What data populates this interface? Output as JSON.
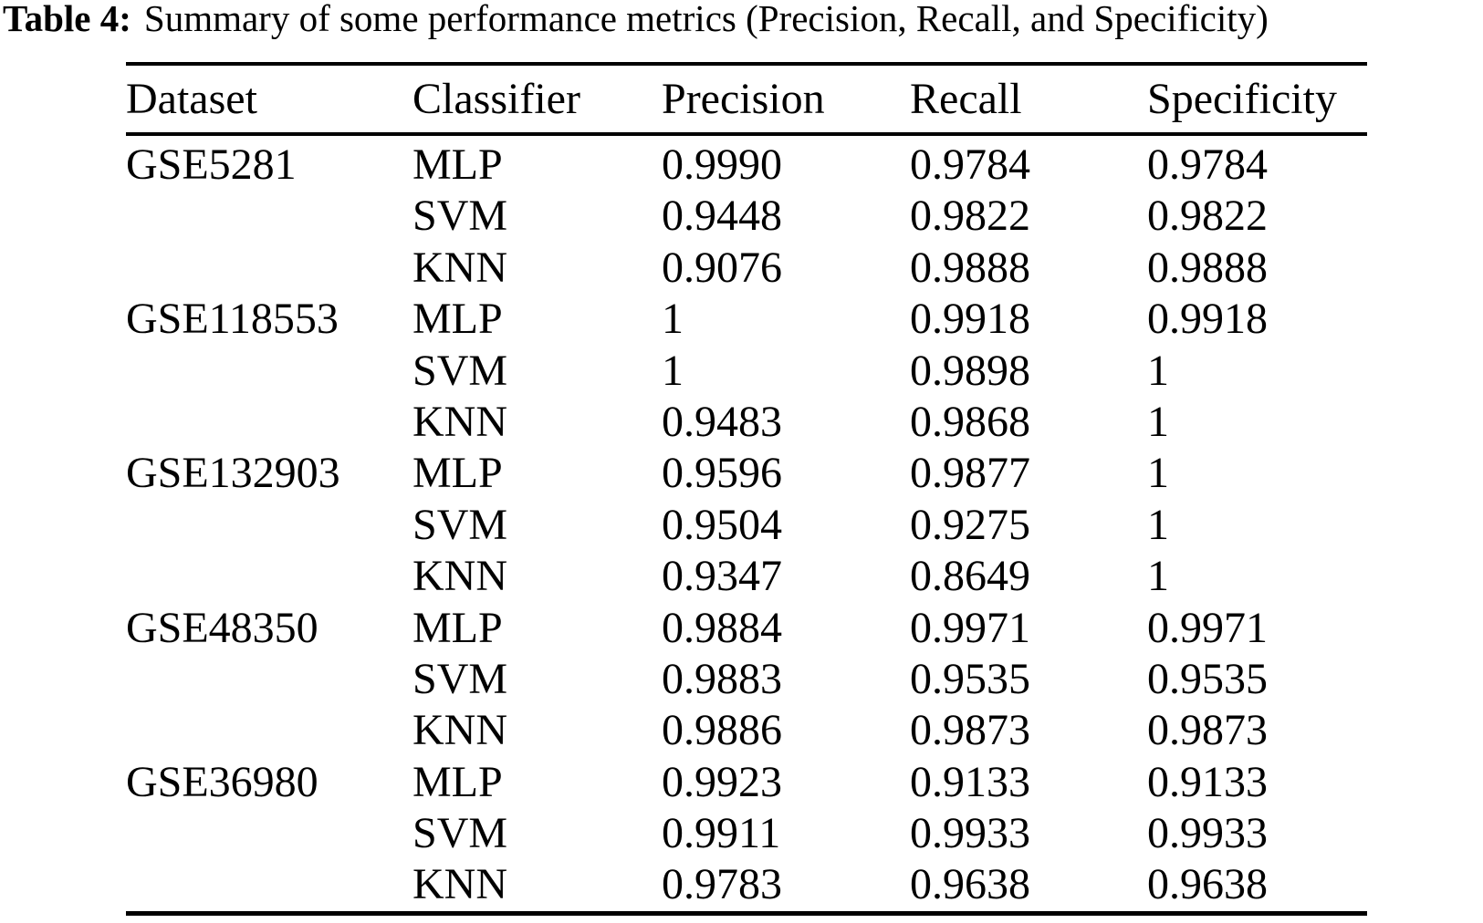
{
  "title": {
    "label": "Table 4:",
    "text": "Summary of some performance metrics (Precision, Recall, and Specificity)"
  },
  "table": {
    "columns": [
      "Dataset",
      "Classifier",
      "Precision",
      "Recall",
      "Specificity"
    ],
    "groups": [
      {
        "dataset": "GSE5281",
        "rows": [
          {
            "classifier": "MLP",
            "precision": "0.9990",
            "recall": "0.9784",
            "specificity": "0.9784"
          },
          {
            "classifier": "SVM",
            "precision": "0.9448",
            "recall": "0.9822",
            "specificity": "0.9822"
          },
          {
            "classifier": "KNN",
            "precision": "0.9076",
            "recall": "0.9888",
            "specificity": "0.9888"
          }
        ]
      },
      {
        "dataset": "GSE118553",
        "rows": [
          {
            "classifier": "MLP",
            "precision": "1",
            "recall": "0.9918",
            "specificity": "0.9918"
          },
          {
            "classifier": "SVM",
            "precision": "1",
            "recall": "0.9898",
            "specificity": "1"
          },
          {
            "classifier": "KNN",
            "precision": "0.9483",
            "recall": "0.9868",
            "specificity": "1"
          }
        ]
      },
      {
        "dataset": "GSE132903",
        "rows": [
          {
            "classifier": "MLP",
            "precision": "0.9596",
            "recall": "0.9877",
            "specificity": "1"
          },
          {
            "classifier": "SVM",
            "precision": "0.9504",
            "recall": "0.9275",
            "specificity": "1"
          },
          {
            "classifier": "KNN",
            "precision": "0.9347",
            "recall": "0.8649",
            "specificity": "1"
          }
        ]
      },
      {
        "dataset": "GSE48350",
        "rows": [
          {
            "classifier": "MLP",
            "precision": "0.9884",
            "recall": "0.9971",
            "specificity": "0.9971"
          },
          {
            "classifier": "SVM",
            "precision": "0.9883",
            "recall": "0.9535",
            "specificity": "0.9535"
          },
          {
            "classifier": "KNN",
            "precision": "0.9886",
            "recall": "0.9873",
            "specificity": "0.9873"
          }
        ]
      },
      {
        "dataset": "GSE36980",
        "rows": [
          {
            "classifier": "MLP",
            "precision": "0.9923",
            "recall": "0.9133",
            "specificity": "0.9133"
          },
          {
            "classifier": "SVM",
            "precision": "0.9911",
            "recall": "0.9933",
            "specificity": "0.9933"
          },
          {
            "classifier": "KNN",
            "precision": "0.9783",
            "recall": "0.9638",
            "specificity": "0.9638"
          }
        ]
      }
    ]
  },
  "colors": {
    "text": "#000000",
    "background": "#ffffff",
    "rule": "#000000"
  }
}
